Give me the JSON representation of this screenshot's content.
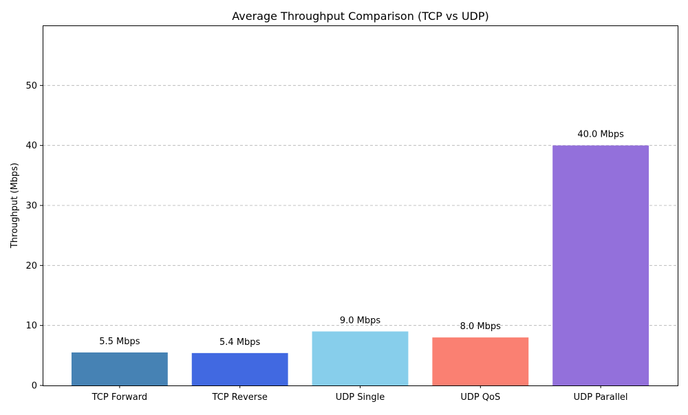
{
  "chart_data": {
    "type": "bar",
    "title": "Average Throughput Comparison (TCP vs UDP)",
    "xlabel": "",
    "ylabel": "Throughput (Mbps)",
    "ylim": [
      0,
      60
    ],
    "yticks": [
      0,
      10,
      20,
      30,
      40,
      50
    ],
    "grid": "y-dashed",
    "categories": [
      "TCP Forward",
      "TCP Reverse",
      "UDP Single",
      "UDP QoS",
      "UDP Parallel"
    ],
    "values": [
      5.5,
      5.4,
      9.0,
      8.0,
      40.0
    ],
    "data_labels": [
      "5.5 Mbps",
      "5.4 Mbps",
      "9.0 Mbps",
      "8.0 Mbps",
      "40.0 Mbps"
    ],
    "colors": [
      "#4682b4",
      "#4169e1",
      "#87ceeb",
      "#fa8072",
      "#9370db"
    ]
  }
}
